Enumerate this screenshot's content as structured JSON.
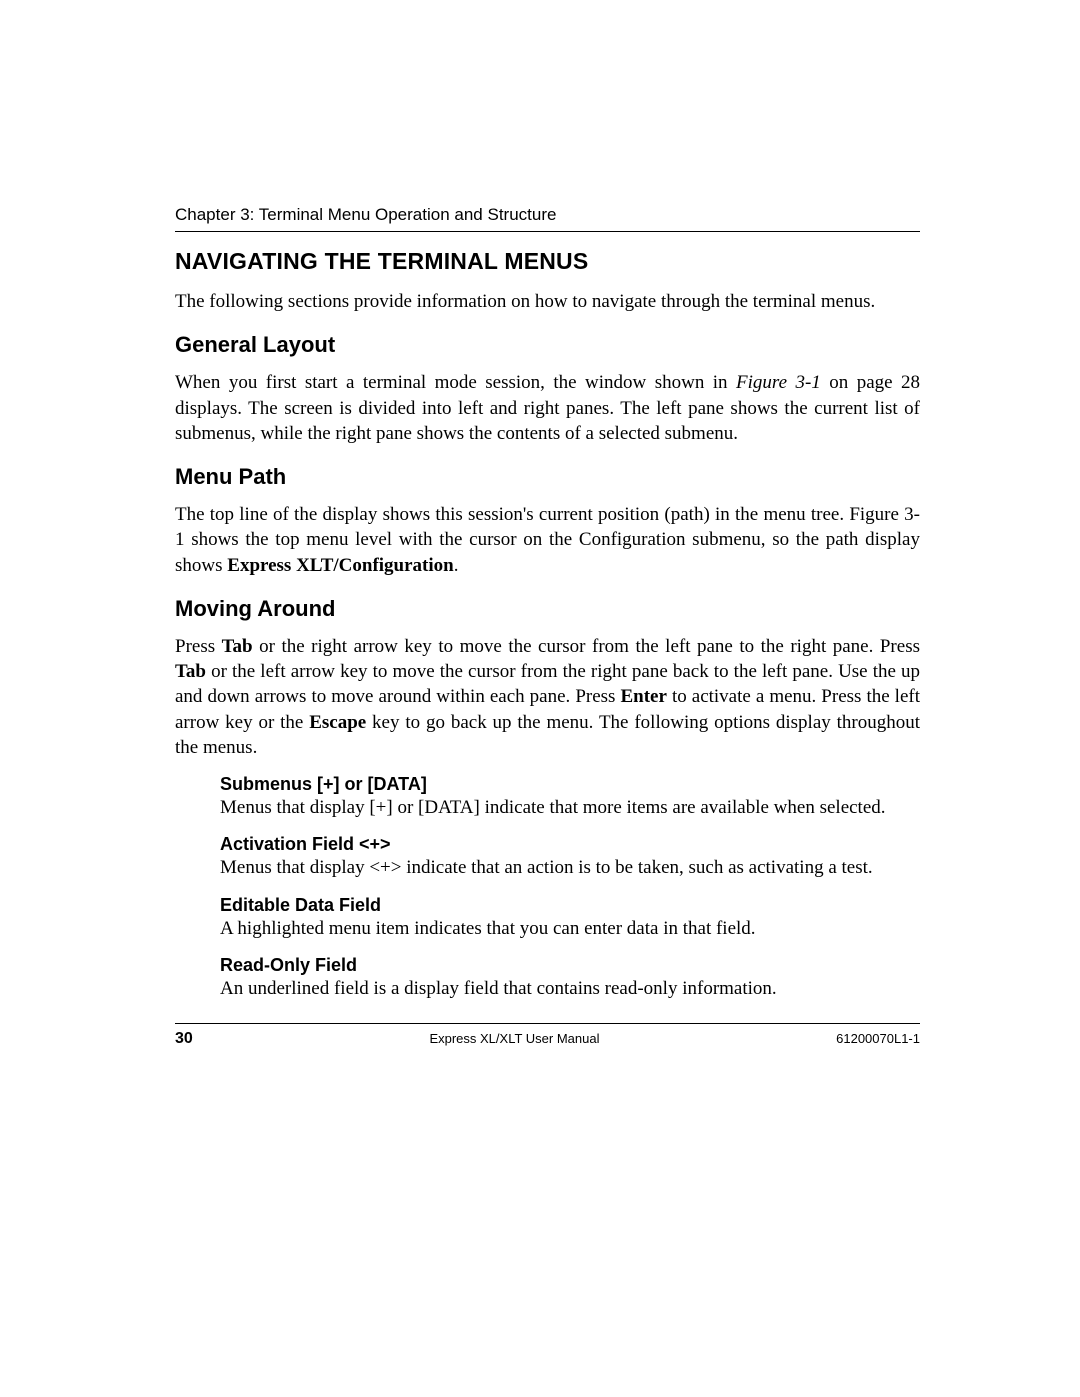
{
  "header": {
    "chapter": "Chapter 3: Terminal Menu Operation and Structure"
  },
  "sections": {
    "title": "NAVIGATING THE TERMINAL MENUS",
    "intro": "The following sections provide information on how to navigate through the terminal menus.",
    "general_layout": {
      "heading": "General Layout",
      "p_a": "When you first start a terminal mode session, the window shown in ",
      "fig_ref": "Figure 3-1",
      "p_b": " on page 28 displays. The screen is divided into left and right panes.  The left pane shows the current list of submenus, while the right pane shows the contents of a selected submenu."
    },
    "menu_path": {
      "heading": "Menu Path",
      "p_a": "The top line of the display shows this session's current position (path) in the menu tree.  Figure 3-1 shows the top menu level with the cursor on the Configuration submenu, so the path display shows ",
      "bold": "Express XLT/Configuration",
      "p_b": "."
    },
    "moving_around": {
      "heading": "Moving Around",
      "p1_a": "Press ",
      "p1_tab1": "Tab",
      "p1_b": " or the right arrow key to move the cursor from the left pane to the right pane.  Press ",
      "p1_tab2": "Tab",
      "p1_c": " or the left arrow key to move the cursor from the right pane back to the left pane. Use the up and down arrows to move around within each pane. Press ",
      "p1_enter": "Enter",
      "p1_d": " to activate a menu. Press the left arrow key or the ",
      "p1_escape": "Escape",
      "p1_e": " key to go back up the menu. The following options display throughout the menus.",
      "sub1_h": "Submenus [+] or [DATA]",
      "sub1_p": "Menus that display [+] or [DATA] indicate that more items are available when selected.",
      "sub2_h": "Activation Field <+>",
      "sub2_p": "Menus that display <+> indicate that an action is to be taken, such as activating a test.",
      "sub3_h": "Editable Data Field",
      "sub3_p": "A highlighted menu item indicates that you can enter data in that field.",
      "sub4_h": "Read-Only Field",
      "sub4_p": "An underlined field is a display field that contains read-only information."
    }
  },
  "footer": {
    "page_number": "30",
    "center": "Express XL/XLT User Manual",
    "right": "61200070L1-1"
  }
}
